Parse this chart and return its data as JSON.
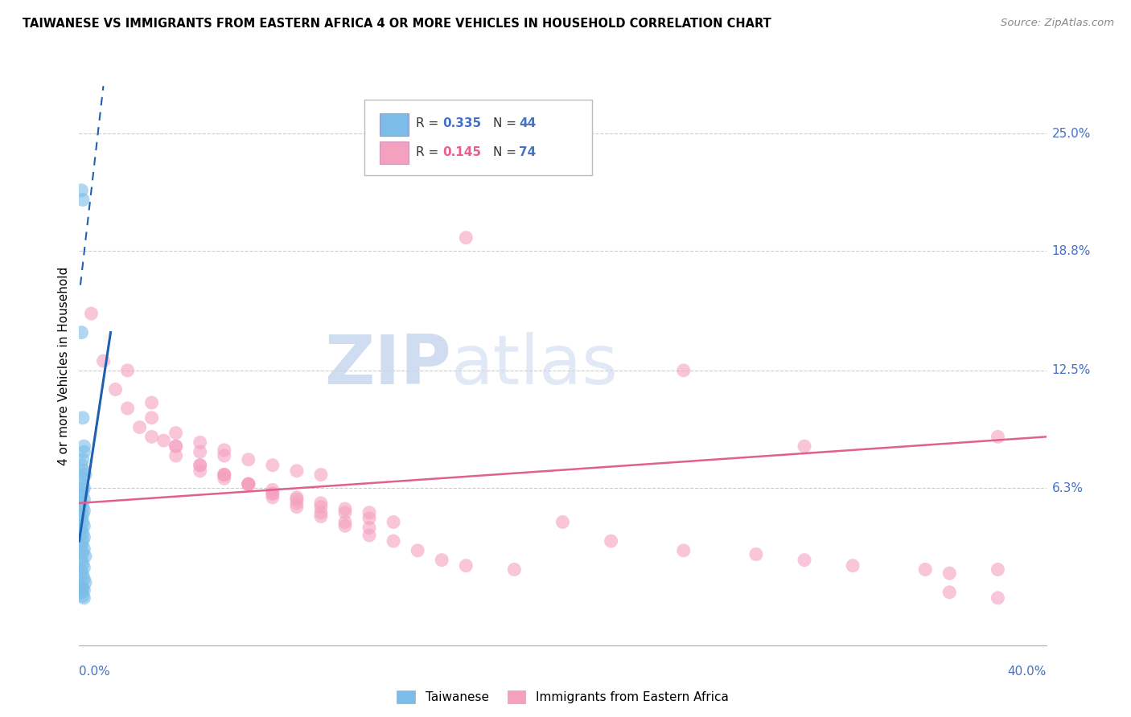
{
  "title": "TAIWANESE VS IMMIGRANTS FROM EASTERN AFRICA 4 OR MORE VEHICLES IN HOUSEHOLD CORRELATION CHART",
  "source": "Source: ZipAtlas.com",
  "ylabel": "4 or more Vehicles in Household",
  "ytick_labels": [
    "6.3%",
    "12.5%",
    "18.8%",
    "25.0%"
  ],
  "ytick_values": [
    6.3,
    12.5,
    18.8,
    25.0
  ],
  "xlim": [
    0.0,
    40.0
  ],
  "ylim": [
    -2.0,
    27.5
  ],
  "taiwan_color": "#7bbde8",
  "africa_color": "#f4a0bf",
  "taiwan_line_color": "#2060b0",
  "africa_line_color": "#e06090",
  "watermark_zip": "ZIP",
  "watermark_atlas": "atlas",
  "taiwan_R": 0.335,
  "taiwan_N": 44,
  "africa_R": 0.145,
  "africa_N": 74,
  "taiwan_scatter_x": [
    0.1,
    0.15,
    0.1,
    0.15,
    0.2,
    0.2,
    0.15,
    0.1,
    0.2,
    0.25,
    0.15,
    0.1,
    0.2,
    0.15,
    0.1,
    0.2,
    0.1,
    0.15,
    0.2,
    0.15,
    0.1,
    0.15,
    0.2,
    0.1,
    0.15,
    0.2,
    0.15,
    0.1,
    0.2,
    0.15,
    0.25,
    0.1,
    0.15,
    0.2,
    0.1,
    0.15,
    0.2,
    0.25,
    0.1,
    0.15,
    0.2,
    0.1,
    0.15,
    0.2
  ],
  "taiwan_scatter_y": [
    22.0,
    21.5,
    14.5,
    10.0,
    8.5,
    8.2,
    7.8,
    7.5,
    7.2,
    7.0,
    6.8,
    6.5,
    6.3,
    6.1,
    5.9,
    5.7,
    5.5,
    5.3,
    5.1,
    4.9,
    4.7,
    4.5,
    4.3,
    4.1,
    3.9,
    3.7,
    3.5,
    3.3,
    3.1,
    2.9,
    2.7,
    2.5,
    2.3,
    2.1,
    1.9,
    1.7,
    1.5,
    1.3,
    1.1,
    1.0,
    0.9,
    0.8,
    0.6,
    0.5
  ],
  "africa_scatter_x": [
    0.5,
    1.0,
    1.5,
    2.0,
    2.5,
    3.0,
    3.5,
    4.0,
    5.0,
    6.0,
    2.0,
    3.0,
    4.0,
    5.0,
    6.0,
    7.0,
    8.0,
    9.0,
    10.0,
    3.0,
    4.0,
    5.0,
    6.0,
    7.0,
    8.0,
    9.0,
    10.0,
    11.0,
    12.0,
    4.0,
    5.0,
    6.0,
    7.0,
    8.0,
    9.0,
    10.0,
    11.0,
    12.0,
    13.0,
    5.0,
    6.0,
    7.0,
    8.0,
    9.0,
    10.0,
    11.0,
    12.0,
    6.0,
    7.0,
    8.0,
    9.0,
    10.0,
    11.0,
    12.0,
    13.0,
    14.0,
    15.0,
    16.0,
    18.0,
    20.0,
    22.0,
    25.0,
    28.0,
    30.0,
    32.0,
    35.0,
    36.0,
    38.0,
    38.0,
    16.0,
    25.0,
    30.0,
    36.0,
    38.0
  ],
  "africa_scatter_y": [
    15.5,
    13.0,
    11.5,
    10.5,
    9.5,
    9.0,
    8.8,
    8.5,
    8.2,
    8.0,
    12.5,
    10.8,
    9.2,
    8.7,
    8.3,
    7.8,
    7.5,
    7.2,
    7.0,
    10.0,
    8.0,
    7.5,
    7.0,
    6.5,
    6.2,
    5.8,
    5.5,
    5.2,
    5.0,
    8.5,
    7.2,
    6.8,
    6.5,
    6.0,
    5.7,
    5.3,
    5.0,
    4.7,
    4.5,
    7.5,
    7.0,
    6.5,
    6.0,
    5.5,
    5.0,
    4.5,
    4.2,
    7.0,
    6.5,
    5.8,
    5.3,
    4.8,
    4.3,
    3.8,
    3.5,
    3.0,
    2.5,
    2.2,
    2.0,
    4.5,
    3.5,
    3.0,
    2.8,
    2.5,
    2.2,
    2.0,
    1.8,
    9.0,
    2.0,
    19.5,
    12.5,
    8.5,
    0.8,
    0.5
  ],
  "tw_line_x": [
    0.0,
    2.5
  ],
  "tw_line_y_start": 0.0,
  "tw_line_slope": 4.5,
  "af_line_x": [
    0.0,
    40.0
  ],
  "af_line_y_start": 5.5,
  "af_line_y_end": 9.0
}
